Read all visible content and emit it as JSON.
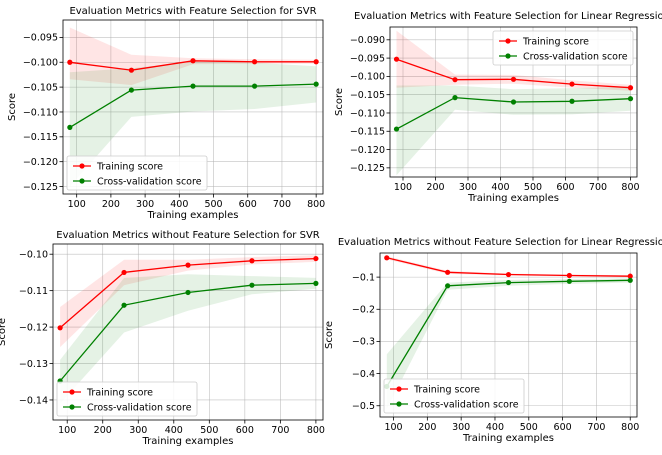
{
  "colors": {
    "training": "#ff0000",
    "cv": "#008000",
    "training_band": "#ff0000",
    "cv_band": "#008000"
  },
  "chart_data": [
    {
      "type": "line",
      "title": "Evaluation Metrics with Feature Selection for SVR",
      "xlabel": "Training examples",
      "ylabel": "Score",
      "xlim": [
        60,
        820
      ],
      "ylim": [
        -0.1265,
        -0.0915
      ],
      "xticks": [
        100,
        200,
        300,
        400,
        500,
        600,
        700,
        800
      ],
      "yticks": [
        -0.095,
        -0.1,
        -0.105,
        -0.11,
        -0.115,
        -0.12,
        -0.125
      ],
      "ytick_labels": [
        "−0.095",
        "−0.100",
        "−0.105",
        "−0.110",
        "−0.115",
        "−0.120",
        "−0.125"
      ],
      "grid": true,
      "legend_position": "lower-left",
      "x": [
        80,
        260,
        440,
        620,
        800
      ],
      "series": [
        {
          "name": "Training score",
          "values": [
            -0.1,
            -0.1016,
            -0.0997,
            -0.0999,
            -0.0999
          ],
          "band_upper": [
            -0.093,
            -0.0985,
            -0.0992,
            -0.0994,
            -0.0995
          ],
          "band_lower": [
            -0.1034,
            -0.1046,
            -0.1004,
            -0.1003,
            -0.1003
          ]
        },
        {
          "name": "Cross-validation score",
          "values": [
            -0.1131,
            -0.1056,
            -0.1048,
            -0.1048,
            -0.1044
          ],
          "band_upper": [
            -0.102,
            -0.1012,
            -0.0999,
            -0.1001,
            -0.1008
          ],
          "band_lower": [
            -0.125,
            -0.111,
            -0.1099,
            -0.1094,
            -0.1081
          ]
        }
      ]
    },
    {
      "type": "line",
      "title": "Evaluation Metrics with Feature Selection for Linear Regression",
      "xlabel": "Training examples",
      "ylabel": "Score",
      "xlim": [
        60,
        820
      ],
      "ylim": [
        -0.1275,
        -0.0865
      ],
      "xticks": [
        100,
        200,
        300,
        400,
        500,
        600,
        700,
        800
      ],
      "yticks": [
        -0.09,
        -0.095,
        -0.1,
        -0.105,
        -0.11,
        -0.115,
        -0.12,
        -0.125
      ],
      "ytick_labels": [
        "−0.090",
        "−0.095",
        "−0.100",
        "−0.105",
        "−0.110",
        "−0.115",
        "−0.120",
        "−0.125"
      ],
      "grid": true,
      "legend_position": "top-right",
      "x": [
        80,
        260,
        440,
        620,
        800
      ],
      "series": [
        {
          "name": "Training score",
          "values": [
            -0.0953,
            -0.1009,
            -0.1008,
            -0.1021,
            -0.1031
          ],
          "band_upper": [
            -0.0875,
            -0.0995,
            -0.0996,
            -0.1011,
            -0.1023
          ],
          "band_lower": [
            -0.1031,
            -0.1023,
            -0.102,
            -0.1031,
            -0.1039
          ]
        },
        {
          "name": "Cross-validation score",
          "values": [
            -0.1144,
            -0.1058,
            -0.107,
            -0.1068,
            -0.1061
          ],
          "band_upper": [
            -0.1025,
            -0.1025,
            -0.1035,
            -0.1032,
            -0.1028
          ],
          "band_lower": [
            -0.127,
            -0.1091,
            -0.1105,
            -0.1104,
            -0.1094
          ]
        }
      ]
    },
    {
      "type": "line",
      "title": "Evaluation Metrics without Feature Selection for SVR",
      "xlabel": "Training examples",
      "ylabel": "Score",
      "xlim": [
        60,
        820
      ],
      "ylim": [
        -0.1455,
        -0.0972
      ],
      "xticks": [
        100,
        200,
        300,
        400,
        500,
        600,
        700,
        800
      ],
      "yticks": [
        -0.1,
        -0.11,
        -0.12,
        -0.13,
        -0.14
      ],
      "ytick_labels": [
        "−0.10",
        "−0.11",
        "−0.12",
        "−0.13",
        "−0.14"
      ],
      "grid": true,
      "legend_position": "lower-left",
      "x": [
        80,
        260,
        440,
        620,
        800
      ],
      "series": [
        {
          "name": "Training score",
          "values": [
            -0.1202,
            -0.105,
            -0.103,
            -0.1018,
            -0.1012
          ],
          "band_upper": [
            -0.1145,
            -0.1015,
            -0.1015,
            -0.1008,
            -0.1003
          ],
          "band_lower": [
            -0.1255,
            -0.1085,
            -0.1045,
            -0.1028,
            -0.1021
          ]
        },
        {
          "name": "Cross-validation score",
          "values": [
            -0.1348,
            -0.114,
            -0.1105,
            -0.1085,
            -0.108
          ],
          "band_upper": [
            -0.129,
            -0.1065,
            -0.1055,
            -0.106,
            -0.1065
          ],
          "band_lower": [
            -0.141,
            -0.1215,
            -0.1155,
            -0.111,
            -0.1095
          ]
        }
      ]
    },
    {
      "type": "line",
      "title": "Evaluation Metrics without Feature Selection for Linear Regression",
      "xlabel": "Training examples",
      "ylabel": "Score",
      "xlim": [
        60,
        820
      ],
      "ylim": [
        -0.535,
        -0.025
      ],
      "xticks": [
        100,
        200,
        300,
        400,
        500,
        600,
        700,
        800
      ],
      "yticks": [
        -0.1,
        -0.2,
        -0.3,
        -0.4,
        -0.5
      ],
      "ytick_labels": [
        "−0.1",
        "−0.2",
        "−0.3",
        "−0.4",
        "−0.5"
      ],
      "grid": true,
      "legend_position": "lower-left",
      "x": [
        80,
        260,
        440,
        620,
        800
      ],
      "series": [
        {
          "name": "Training score",
          "values": [
            -0.04,
            -0.085,
            -0.092,
            -0.095,
            -0.097
          ],
          "band_upper": [
            -0.035,
            -0.08,
            -0.089,
            -0.092,
            -0.094
          ],
          "band_lower": [
            -0.045,
            -0.09,
            -0.095,
            -0.098,
            -0.1
          ]
        },
        {
          "name": "Cross-validation score",
          "values": [
            -0.44,
            -0.127,
            -0.117,
            -0.113,
            -0.11
          ],
          "band_upper": [
            -0.34,
            -0.117,
            -0.109,
            -0.106,
            -0.104
          ],
          "band_lower": [
            -0.51,
            -0.139,
            -0.127,
            -0.121,
            -0.117
          ]
        }
      ]
    }
  ]
}
